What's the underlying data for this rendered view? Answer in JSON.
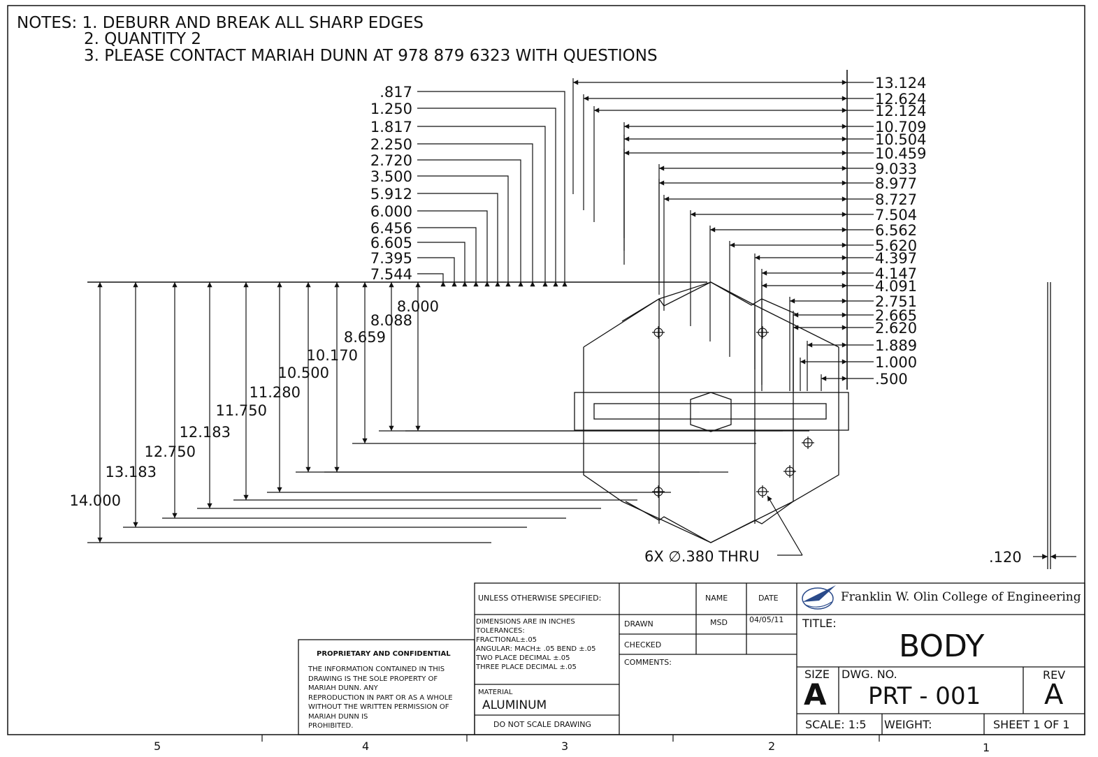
{
  "notes": {
    "line1": "NOTES: 1. DEBURR AND BREAK  ALL SHARP EDGES",
    "line2": "2. QUANTITY 2",
    "line3": "3. PLEASE CONTACT MARIAH DUNN AT 978 879 6323 WITH QUESTIONS"
  },
  "dims_top": [
    ".817",
    "1.250",
    "1.817",
    "2.250",
    "2.720",
    "3.500",
    "5.912",
    "6.000",
    "6.456",
    "6.605",
    "7.395",
    "7.544"
  ],
  "dims_left": [
    "8.000",
    "8.088",
    "8.659",
    "10.170",
    "10.500",
    "11.280",
    "11.750",
    "12.183",
    "12.750",
    "13.183",
    "14.000"
  ],
  "dims_right": [
    "13.124",
    "12.624",
    "12.124",
    "10.709",
    "10.504",
    "10.459",
    "9.033",
    "8.977",
    "8.727",
    "7.504",
    "6.562",
    "5.620",
    "4.397",
    "4.147",
    "4.091",
    "2.751",
    "2.665",
    "2.620",
    "1.889",
    "1.000",
    ".500"
  ],
  "hole_callout": "6X  ∅.380 THRU",
  "thickness_dim": ".120",
  "title_block": {
    "unless": "UNLESS OTHERWISE SPECIFIED:",
    "name_hdr": "NAME",
    "date_hdr": "DATE",
    "dims_lines": [
      "DIMENSIONS ARE IN INCHES",
      "TOLERANCES:",
      "FRACTIONAL±.05",
      "ANGULAR: MACH± .05 BEND ±.05",
      "TWO PLACE DECIMAL    ±.05",
      "THREE PLACE DECIMAL  ±.05"
    ],
    "drawn_label": "DRAWN",
    "drawn_name": "MSD",
    "drawn_date": "04/05/11",
    "checked_label": "CHECKED",
    "comments_label": "COMMENTS:",
    "material_label": "MATERIAL",
    "material_value": "ALUMINUM",
    "do_not_scale": "DO NOT SCALE DRAWING",
    "school": "Franklin W. Olin College of Engineering",
    "title_label": "TITLE:",
    "title_value": "BODY",
    "size_label": "SIZE",
    "size_value": "A",
    "dwg_label": "DWG.  NO.",
    "dwg_value": "PRT - 001",
    "rev_label": "REV",
    "rev_value": "A",
    "scale": "SCALE: 1:5",
    "weight": "WEIGHT:",
    "sheet": "SHEET 1 OF 1"
  },
  "proprietary": {
    "heading": "PROPRIETARY AND CONFIDENTIAL",
    "lines": [
      "THE INFORMATION CONTAINED IN THIS",
      "DRAWING IS THE SOLE PROPERTY OF",
      "MARIAH DUNN.  ANY",
      "REPRODUCTION IN PART OR AS A WHOLE",
      "WITHOUT THE WRITTEN PERMISSION OF",
      "MARIAH DUNN IS",
      "PROHIBITED."
    ]
  },
  "zones": [
    "5",
    "4",
    "3",
    "2",
    "1"
  ]
}
